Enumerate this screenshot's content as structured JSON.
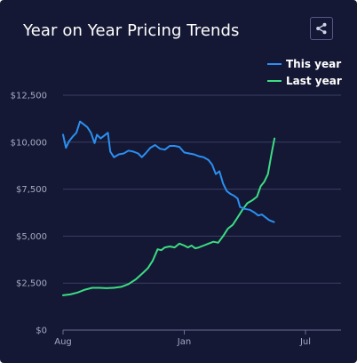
{
  "title": "Year on Year Pricing Trends",
  "share_icon": "share-icon",
  "chart_data": {
    "type": "line",
    "title": "Year on Year Pricing Trends",
    "xlabel": "",
    "ylabel": "",
    "ylim": [
      0,
      13000
    ],
    "y_ticks": [
      0,
      2500,
      5000,
      7500,
      10000,
      12500
    ],
    "y_tick_labels": [
      "$0",
      "$2,500",
      "$5,000",
      "$7,500",
      "$10,000",
      "$12,500"
    ],
    "x_ticks": [
      0,
      5,
      10
    ],
    "x_tick_labels": [
      "Aug",
      "Jan",
      "Jul"
    ],
    "xlim": [
      0,
      11.2
    ],
    "grid": "horizontal",
    "legend_position": "top-right",
    "series": [
      {
        "name": "This year",
        "color": "#2b8ff0",
        "points": [
          [
            0.0,
            10400
          ],
          [
            0.12,
            9700
          ],
          [
            0.25,
            10050
          ],
          [
            0.4,
            10300
          ],
          [
            0.55,
            10500
          ],
          [
            0.7,
            11100
          ],
          [
            0.85,
            10950
          ],
          [
            1.0,
            10800
          ],
          [
            1.15,
            10500
          ],
          [
            1.3,
            9950
          ],
          [
            1.4,
            10400
          ],
          [
            1.55,
            10200
          ],
          [
            1.7,
            10350
          ],
          [
            1.85,
            10500
          ],
          [
            1.95,
            9500
          ],
          [
            2.1,
            9200
          ],
          [
            2.3,
            9350
          ],
          [
            2.5,
            9400
          ],
          [
            2.7,
            9550
          ],
          [
            2.9,
            9500
          ],
          [
            3.1,
            9400
          ],
          [
            3.25,
            9200
          ],
          [
            3.4,
            9400
          ],
          [
            3.6,
            9700
          ],
          [
            3.8,
            9850
          ],
          [
            4.0,
            9650
          ],
          [
            4.2,
            9600
          ],
          [
            4.4,
            9800
          ],
          [
            4.6,
            9800
          ],
          [
            4.8,
            9750
          ],
          [
            5.0,
            9450
          ],
          [
            5.2,
            9400
          ],
          [
            5.4,
            9350
          ],
          [
            5.6,
            9250
          ],
          [
            5.8,
            9200
          ],
          [
            6.0,
            9050
          ],
          [
            6.15,
            8800
          ],
          [
            6.3,
            8300
          ],
          [
            6.45,
            8450
          ],
          [
            6.6,
            7800
          ],
          [
            6.75,
            7400
          ],
          [
            6.9,
            7250
          ],
          [
            7.05,
            7150
          ],
          [
            7.2,
            7000
          ],
          [
            7.3,
            6550
          ],
          [
            7.5,
            6450
          ],
          [
            7.7,
            6400
          ],
          [
            7.9,
            6250
          ],
          [
            8.05,
            6100
          ],
          [
            8.2,
            6150
          ],
          [
            8.35,
            6000
          ],
          [
            8.5,
            5850
          ],
          [
            8.7,
            5750
          ]
        ]
      },
      {
        "name": "Last year",
        "color": "#3ddc84",
        "points": [
          [
            0.0,
            1850
          ],
          [
            0.3,
            1900
          ],
          [
            0.6,
            2000
          ],
          [
            0.9,
            2150
          ],
          [
            1.2,
            2250
          ],
          [
            1.5,
            2250
          ],
          [
            1.8,
            2230
          ],
          [
            2.1,
            2250
          ],
          [
            2.4,
            2300
          ],
          [
            2.7,
            2450
          ],
          [
            3.0,
            2700
          ],
          [
            3.3,
            3050
          ],
          [
            3.5,
            3300
          ],
          [
            3.7,
            3700
          ],
          [
            3.9,
            4300
          ],
          [
            4.05,
            4250
          ],
          [
            4.2,
            4400
          ],
          [
            4.4,
            4450
          ],
          [
            4.6,
            4400
          ],
          [
            4.8,
            4600
          ],
          [
            5.0,
            4500
          ],
          [
            5.15,
            4400
          ],
          [
            5.3,
            4500
          ],
          [
            5.45,
            4350
          ],
          [
            5.6,
            4400
          ],
          [
            5.8,
            4500
          ],
          [
            6.0,
            4600
          ],
          [
            6.2,
            4700
          ],
          [
            6.4,
            4650
          ],
          [
            6.6,
            5000
          ],
          [
            6.8,
            5400
          ],
          [
            7.0,
            5600
          ],
          [
            7.2,
            6000
          ],
          [
            7.4,
            6400
          ],
          [
            7.6,
            6750
          ],
          [
            7.8,
            6900
          ],
          [
            8.0,
            7100
          ],
          [
            8.15,
            7650
          ],
          [
            8.3,
            7900
          ],
          [
            8.45,
            8300
          ],
          [
            8.6,
            9400
          ],
          [
            8.72,
            10200
          ]
        ]
      }
    ]
  }
}
